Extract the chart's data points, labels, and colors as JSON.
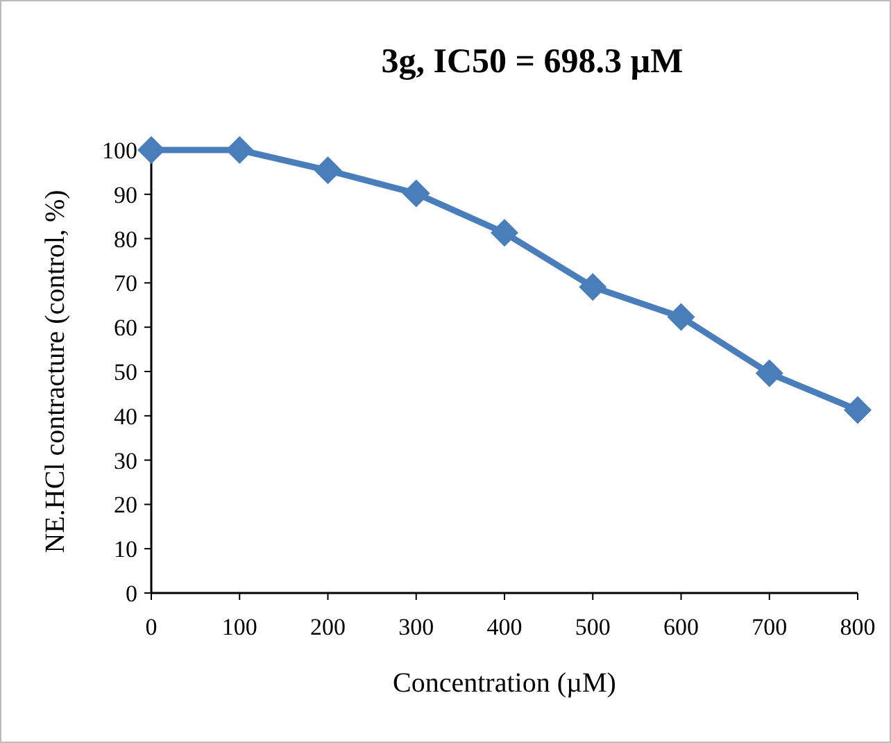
{
  "chart_data": {
    "type": "line",
    "title": "3g, IC50 = 698.3 µM",
    "xlabel": "Concentration (µM)",
    "ylabel": "NE.HCl contracture (control, %)",
    "x": [
      0,
      100,
      200,
      300,
      400,
      500,
      600,
      700,
      800
    ],
    "series": [
      {
        "color": "#4a7ebb",
        "values": [
          100,
          100,
          95.4,
          90.2,
          81.3,
          69.1,
          62.3,
          49.6,
          41.3
        ]
      }
    ],
    "xlim": [
      0,
      800
    ],
    "xticks": [
      0,
      100,
      200,
      300,
      400,
      500,
      600,
      700,
      800
    ],
    "ylim": [
      0,
      100
    ],
    "yticks": [
      0,
      10,
      20,
      30,
      40,
      50,
      60,
      70,
      80,
      90,
      100
    ],
    "marker": "diamond",
    "line_style": "solid"
  }
}
